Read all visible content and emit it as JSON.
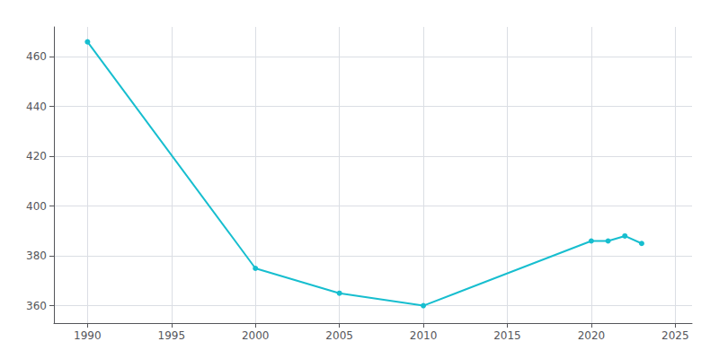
{
  "chart_data": {
    "type": "line",
    "x": [
      1990,
      2000,
      2005,
      2010,
      2020,
      2021,
      2022,
      2023
    ],
    "values": [
      466,
      375,
      365,
      360,
      386,
      386,
      388,
      385
    ],
    "color": "#17becf",
    "marker": "circle",
    "xlim": [
      1988,
      2026
    ],
    "ylim": [
      353,
      472
    ],
    "xticks": [
      1990,
      1995,
      2000,
      2005,
      2010,
      2015,
      2020,
      2025
    ],
    "yticks": [
      360,
      380,
      400,
      420,
      440,
      460
    ],
    "grid": true
  }
}
